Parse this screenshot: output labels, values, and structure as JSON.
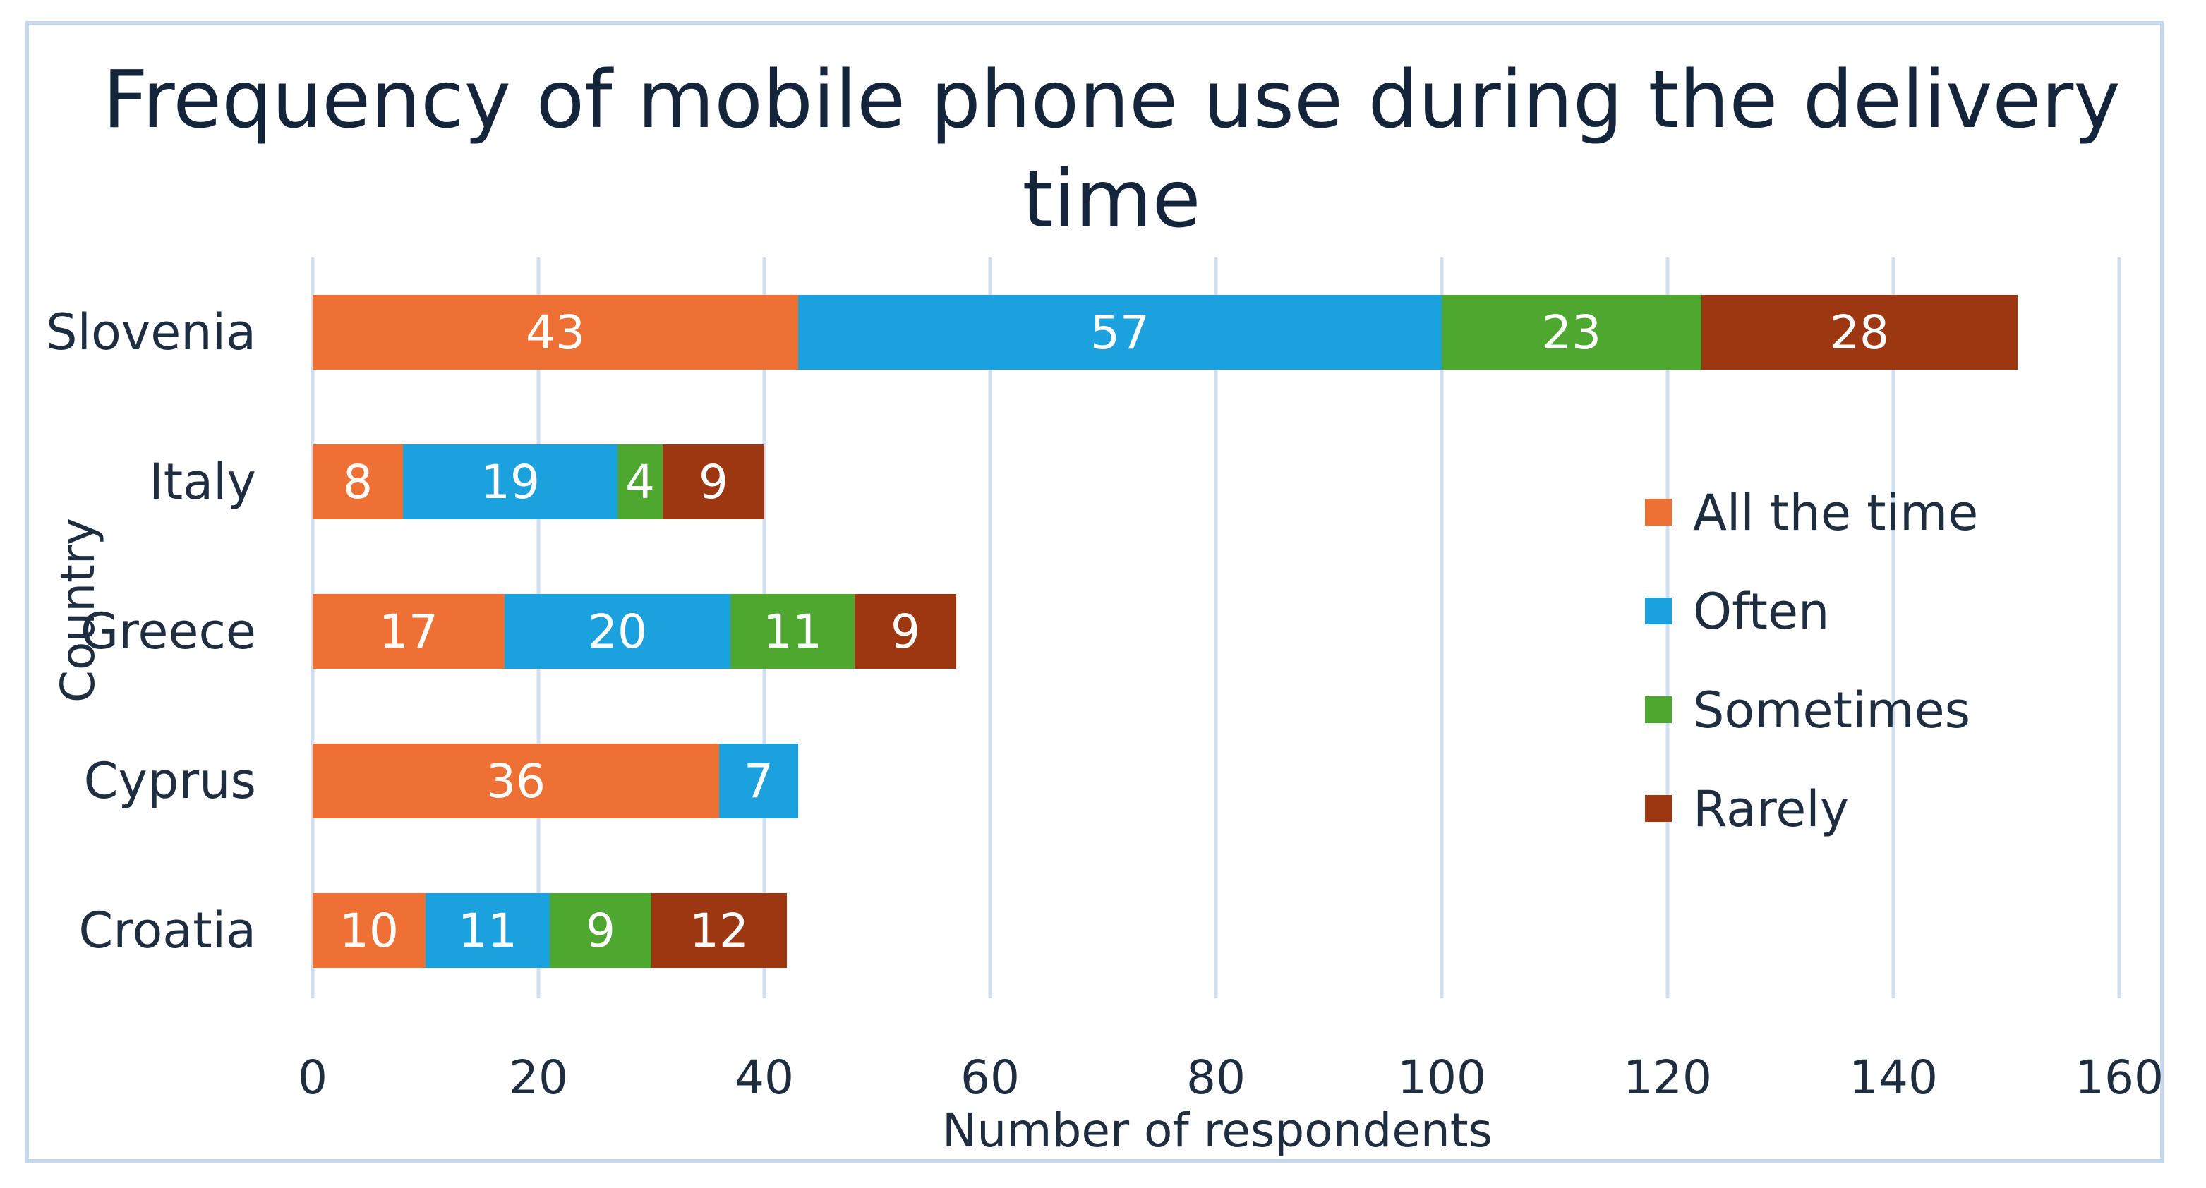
{
  "chart_data": {
    "type": "bar",
    "orientation": "horizontal",
    "stacked": true,
    "title": "Frequency of mobile phone use during the delivery time",
    "title_lines": [
      "Frequency of mobile phone use during the delivery",
      "time"
    ],
    "xlabel": "Number of respondents",
    "ylabel": "Country",
    "categories": [
      "Slovenia",
      "Italy",
      "Greece",
      "Cyprus",
      "Croatia"
    ],
    "xlim": [
      0,
      160
    ],
    "xticks": [
      0,
      20,
      40,
      60,
      80,
      100,
      120,
      140,
      160
    ],
    "grid": true,
    "legend_position": "right",
    "series": [
      {
        "name": "All the time",
        "color": "#ee7034",
        "values": [
          43,
          8,
          17,
          36,
          10
        ]
      },
      {
        "name": "Often",
        "color": "#1ba1dd",
        "values": [
          57,
          19,
          20,
          7,
          11
        ]
      },
      {
        "name": "Sometimes",
        "color": "#4ea72e",
        "values": [
          23,
          4,
          11,
          0,
          9
        ]
      },
      {
        "name": "Rarely",
        "color": "#9c3712",
        "values": [
          28,
          9,
          9,
          0,
          12
        ]
      }
    ]
  }
}
